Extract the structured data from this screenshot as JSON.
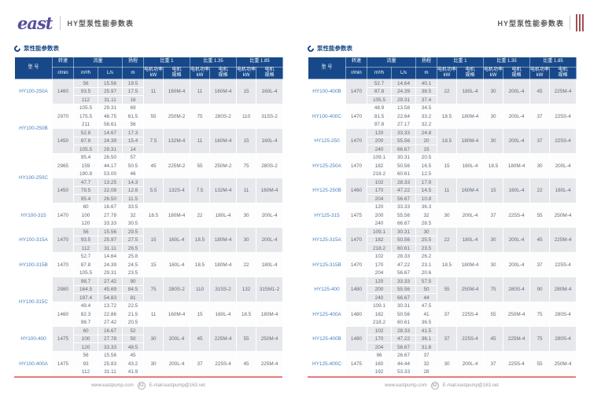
{
  "header": {
    "logo": "east",
    "title_left": "HY型泵性能参数表",
    "title_right": "HY型泵性能参数表"
  },
  "section_title": "泵性能参数表",
  "columns": {
    "model": "型 号",
    "speed": "转速",
    "speed_unit": "r/min",
    "flow": "流量",
    "flow_units": [
      "m³/h",
      "L/s"
    ],
    "head": "扬程",
    "head_unit": "m",
    "gravity_groups": [
      "比重 1",
      "比重 1.35",
      "比重 1.85"
    ],
    "power_label": "电机功率",
    "power_unit": "kW",
    "spec_line1": "电机",
    "spec_line2": "规格"
  },
  "footers": {
    "left": {
      "url": "www.eastpump.com",
      "page": "61",
      "email": "E-mail:eastpump@163.net"
    },
    "right": {
      "url": "www.eastpump.com",
      "page": "62",
      "email": "E-mail:eastpump@163.net"
    }
  },
  "colors": {
    "header_bg": "#17498a",
    "title_navy": "#1c4a86",
    "model_blue": "#4a80c0",
    "stripe": "#e7e8eb",
    "footer_line": "#e27d7d",
    "logo_purple": "#564fa0",
    "tab_red": "#a25151"
  },
  "tables": {
    "left": [
      {
        "model": "HY100-250A",
        "blocks": [
          {
            "speed": "1460",
            "rows": [
              [
                "56",
                "15.56",
                "19.5"
              ],
              [
                "93.5",
                "25.97",
                "17.5"
              ],
              [
                "112",
                "31.11",
                "16"
              ]
            ],
            "powers": [
              [
                "11",
                "160M-4"
              ],
              [
                "11",
                "160M-4"
              ],
              [
                "15",
                "160L-4"
              ]
            ]
          }
        ]
      },
      {
        "model": "HY100-250B",
        "blocks": [
          {
            "speed": "2970",
            "rows": [
              [
                "105.5",
                "29.31",
                "69"
              ],
              [
                "175.5",
                "48.75",
                "61.5"
              ],
              [
                "211",
                "58.61",
                "56"
              ]
            ],
            "powers": [
              [
                "55",
                "250M-2"
              ],
              [
                "75",
                "280S-2"
              ],
              [
                "110",
                "315S-2"
              ]
            ]
          },
          {
            "speed": "1450",
            "rows": [
              [
                "52.8",
                "14.67",
                "17.3"
              ],
              [
                "87.8",
                "24.39",
                "15.4"
              ],
              [
                "105.5",
                "29.31",
                "14"
              ]
            ],
            "powers": [
              [
                "7.5",
                "132M-4"
              ],
              [
                "11",
                "160M-4"
              ],
              [
                "15",
                "160L-4"
              ]
            ]
          }
        ]
      },
      {
        "model": "HY100-250C",
        "blocks": [
          {
            "speed": "2965",
            "rows": [
              [
                "95.4",
                "26.50",
                "57"
              ],
              [
                "159",
                "44.17",
                "50.5"
              ],
              [
                "190.8",
                "53.00",
                "46"
              ]
            ],
            "powers": [
              [
                "45",
                "225M-2"
              ],
              [
                "55",
                "250M-2"
              ],
              [
                "75",
                "280S-2"
              ]
            ]
          },
          {
            "speed": "1450",
            "rows": [
              [
                "47.7",
                "13.25",
                "14.3"
              ],
              [
                "79.5",
                "22.08",
                "12.6"
              ],
              [
                "95.4",
                "26.50",
                "11.5"
              ]
            ],
            "powers": [
              [
                "5.5",
                "132S-4"
              ],
              [
                "7.5",
                "132M-4"
              ],
              [
                "11",
                "160M-4"
              ]
            ]
          }
        ]
      },
      {
        "model": "HY100-315",
        "blocks": [
          {
            "speed": "1470",
            "rows": [
              [
                "60",
                "16.67",
                "33.5"
              ],
              [
                "100",
                "27.78",
                "32"
              ],
              [
                "120",
                "33.33",
                "30.5"
              ]
            ],
            "powers": [
              [
                "18.5",
                "180M-4"
              ],
              [
                "22",
                "180L-4"
              ],
              [
                "30",
                "200L-4"
              ]
            ]
          }
        ]
      },
      {
        "model": "HY100-315A",
        "blocks": [
          {
            "speed": "1470",
            "rows": [
              [
                "56",
                "15.56",
                "29.5"
              ],
              [
                "93.5",
                "25.97",
                "27.5"
              ],
              [
                "112",
                "31.11",
                "26.5"
              ]
            ],
            "powers": [
              [
                "15",
                "160L-4"
              ],
              [
                "18.5",
                "180M-4"
              ],
              [
                "30",
                "200L-4"
              ]
            ]
          }
        ]
      },
      {
        "model": "HY100-315B",
        "blocks": [
          {
            "speed": "1470",
            "rows": [
              [
                "52.7",
                "14.64",
                "25.8"
              ],
              [
                "87.8",
                "24.39",
                "24.5"
              ],
              [
                "105.5",
                "29.31",
                "23.5"
              ]
            ],
            "powers": [
              [
                "15",
                "160L-4"
              ],
              [
                "18.5",
                "180M-4"
              ],
              [
                "22",
                "180L-4"
              ]
            ]
          }
        ]
      },
      {
        "model": "HY100-315C",
        "blocks": [
          {
            "speed": "2980",
            "rows": [
              [
                "98.7",
                "27.42",
                "90"
              ],
              [
                "164.5",
                "45.69",
                "84.5"
              ],
              [
                "197.4",
                "54.83",
                "81"
              ]
            ],
            "powers": [
              [
                "75",
                "280S-2"
              ],
              [
                "110",
                "315S-2"
              ],
              [
                "132",
                "315M1-2"
              ]
            ]
          },
          {
            "speed": "1460",
            "rows": [
              [
                "49.4",
                "13.72",
                "22.5"
              ],
              [
                "82.3",
                "22.86",
                "21.5"
              ],
              [
                "98.7",
                "27.42",
                "20.5"
              ]
            ],
            "powers": [
              [
                "11",
                "160M-4"
              ],
              [
                "15",
                "160L-4"
              ],
              [
                "18.5",
                "180M-4"
              ]
            ]
          }
        ]
      },
      {
        "model": "HY100-400",
        "blocks": [
          {
            "speed": "1475",
            "rows": [
              [
                "60",
                "16.67",
                "52"
              ],
              [
                "100",
                "27.78",
                "50"
              ],
              [
                "120",
                "33.33",
                "48.5"
              ]
            ],
            "powers": [
              [
                "30",
                "200L-4"
              ],
              [
                "45",
                "225M-4"
              ],
              [
                "55",
                "250M-4"
              ]
            ]
          }
        ]
      },
      {
        "model": "HY100-400A",
        "blocks": [
          {
            "speed": "1475",
            "rows": [
              [
                "56",
                "15.56",
                "45"
              ],
              [
                "93",
                "25.83",
                "43.2"
              ],
              [
                "112",
                "31.11",
                "41.9"
              ]
            ],
            "powers": [
              [
                "30",
                "200L-4"
              ],
              [
                "37",
                "225S-4"
              ],
              [
                "45",
                "225M-4"
              ]
            ]
          }
        ]
      }
    ],
    "right": [
      {
        "model": "HY100-400B",
        "blocks": [
          {
            "speed": "1470",
            "rows": [
              [
                "52.7",
                "14.64",
                "40.1"
              ],
              [
                "87.8",
                "24.39",
                "38.5"
              ],
              [
                "105.5",
                "29.31",
                "37.4"
              ]
            ],
            "powers": [
              [
                "22",
                "180L-4"
              ],
              [
                "30",
                "200L-4"
              ],
              [
                "45",
                "225M-4"
              ]
            ]
          }
        ]
      },
      {
        "model": "HY100-400C",
        "blocks": [
          {
            "speed": "1470",
            "rows": [
              [
                "48.9",
                "13.58",
                "34.5"
              ],
              [
                "81.5",
                "22.64",
                "33.2"
              ],
              [
                "97.8",
                "27.17",
                "32.2"
              ]
            ],
            "powers": [
              [
                "18.5",
                "180M-4"
              ],
              [
                "30",
                "200L-4"
              ],
              [
                "37",
                "225S-4"
              ]
            ]
          }
        ]
      },
      {
        "model": "HY125-250",
        "blocks": [
          {
            "speed": "1470",
            "rows": [
              [
                "120",
                "33.33",
                "24.8"
              ],
              [
                "200",
                "55.56",
                "20"
              ],
              [
                "240",
                "66.67",
                "15"
              ]
            ],
            "powers": [
              [
                "18.5",
                "180M-4"
              ],
              [
                "30",
                "200L-4"
              ],
              [
                "37",
                "225S-4"
              ]
            ]
          }
        ]
      },
      {
        "model": "HY125-250A",
        "blocks": [
          {
            "speed": "1470",
            "rows": [
              [
                "109.1",
                "30.31",
                "20.5"
              ],
              [
                "182",
                "50.56",
                "16.5"
              ],
              [
                "218.2",
                "60.61",
                "12.5"
              ]
            ],
            "powers": [
              [
                "15",
                "160L-4"
              ],
              [
                "18.5",
                "180M-4"
              ],
              [
                "30",
                "200L-4"
              ]
            ]
          }
        ]
      },
      {
        "model": "HY125-250B",
        "blocks": [
          {
            "speed": "1460",
            "rows": [
              [
                "102",
                "28.33",
                "17.9"
              ],
              [
                "170",
                "47.22",
                "14.5"
              ],
              [
                "204",
                "56.67",
                "10.8"
              ]
            ],
            "powers": [
              [
                "11",
                "160M-4"
              ],
              [
                "15",
                "160L-4"
              ],
              [
                "22",
                "180L-4"
              ]
            ]
          }
        ]
      },
      {
        "model": "HY125-315",
        "blocks": [
          {
            "speed": "1475",
            "rows": [
              [
                "120",
                "33.33",
                "36.3"
              ],
              [
                "200",
                "55.56",
                "32"
              ],
              [
                "240",
                "66.67",
                "28.5"
              ]
            ],
            "powers": [
              [
                "30",
                "200L-4"
              ],
              [
                "37",
                "225S-4"
              ],
              [
                "55",
                "250M-4"
              ]
            ]
          }
        ]
      },
      {
        "model": "HY125-315A",
        "blocks": [
          {
            "speed": "1470",
            "rows": [
              [
                "109.1",
                "30.31",
                "30"
              ],
              [
                "182",
                "50.56",
                "25.5"
              ],
              [
                "218.2",
                "60.61",
                "23.5"
              ]
            ],
            "powers": [
              [
                "22",
                "180L-4"
              ],
              [
                "30",
                "200L-4"
              ],
              [
                "45",
                "225M-4"
              ]
            ]
          }
        ]
      },
      {
        "model": "HY125-315B",
        "blocks": [
          {
            "speed": "1470",
            "rows": [
              [
                "102",
                "28.33",
                "26.2"
              ],
              [
                "170",
                "47.22",
                "23.1"
              ],
              [
                "204",
                "56.67",
                "20.6"
              ]
            ],
            "powers": [
              [
                "18.5",
                "180M-4"
              ],
              [
                "30",
                "200L-4"
              ],
              [
                "37",
                "225S-4"
              ]
            ]
          }
        ]
      },
      {
        "model": "HY125-400",
        "blocks": [
          {
            "speed": "1480",
            "rows": [
              [
                "120",
                "33.33",
                "57.5"
              ],
              [
                "200",
                "55.56",
                "50"
              ],
              [
                "240",
                "66.67",
                "44"
              ]
            ],
            "powers": [
              [
                "55",
                "250M-4"
              ],
              [
                "75",
                "280S-4"
              ],
              [
                "90",
                "280M-4"
              ]
            ]
          }
        ]
      },
      {
        "model": "HY125-400A",
        "blocks": [
          {
            "speed": "1480",
            "rows": [
              [
                "109.1",
                "30.31",
                "47.5"
              ],
              [
                "182",
                "50.56",
                "41"
              ],
              [
                "218.2",
                "60.61",
                "36.5"
              ]
            ],
            "powers": [
              [
                "37",
                "225S-4"
              ],
              [
                "55",
                "250M-4"
              ],
              [
                "75",
                "280S-4"
              ]
            ]
          }
        ]
      },
      {
        "model": "HY125-400B",
        "blocks": [
          {
            "speed": "1480",
            "rows": [
              [
                "102",
                "28.33",
                "41.5"
              ],
              [
                "170",
                "47.22",
                "36.1"
              ],
              [
                "204",
                "56.67",
                "31.8"
              ]
            ],
            "powers": [
              [
                "37",
                "225S-4"
              ],
              [
                "45",
                "225M-4"
              ],
              [
                "75",
                "280S-4"
              ]
            ]
          }
        ]
      },
      {
        "model": "HY125-400C",
        "blocks": [
          {
            "speed": "1475",
            "rows": [
              [
                "96",
                "26.67",
                "37"
              ],
              [
                "160",
                "44.44",
                "32"
              ],
              [
                "192",
                "53.33",
                "28"
              ]
            ],
            "powers": [
              [
                "30",
                "200L-4"
              ],
              [
                "37",
                "225S-4"
              ],
              [
                "55",
                "250M-4"
              ]
            ]
          }
        ]
      }
    ]
  }
}
